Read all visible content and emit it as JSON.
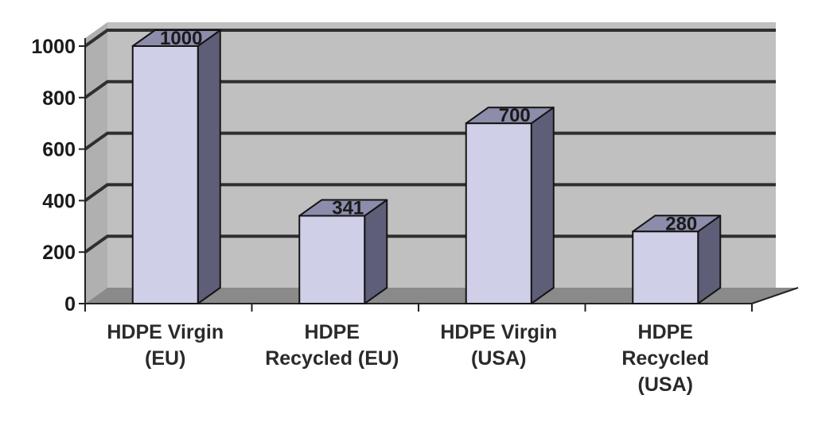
{
  "chart_data": {
    "type": "bar",
    "style": "3d-column",
    "categories": [
      [
        "HDPE Virgin",
        "(EU)"
      ],
      [
        "HDPE",
        "Recycled (EU)"
      ],
      [
        "HDPE Virgin",
        "(USA)"
      ],
      [
        "HDPE",
        "Recycled",
        "(USA)"
      ]
    ],
    "values": [
      1000,
      341,
      700,
      280
    ],
    "data_labels": [
      "1000",
      "341",
      "700",
      "280"
    ],
    "title": "",
    "xlabel": "",
    "ylabel": "",
    "ylim": [
      0,
      1000
    ],
    "yticks": [
      0,
      200,
      400,
      600,
      800,
      1000
    ],
    "grid": true,
    "legend": "none",
    "colors": {
      "plot_background": "#c0c0c0",
      "floor": "#8a8a8a",
      "gridline": "#2f2f2f",
      "bar_front": "#cfcfe8",
      "bar_side": "#5e5e78",
      "bar_top": "#8c8cab",
      "bar_outline": "#141414",
      "axis": "#222222"
    }
  }
}
